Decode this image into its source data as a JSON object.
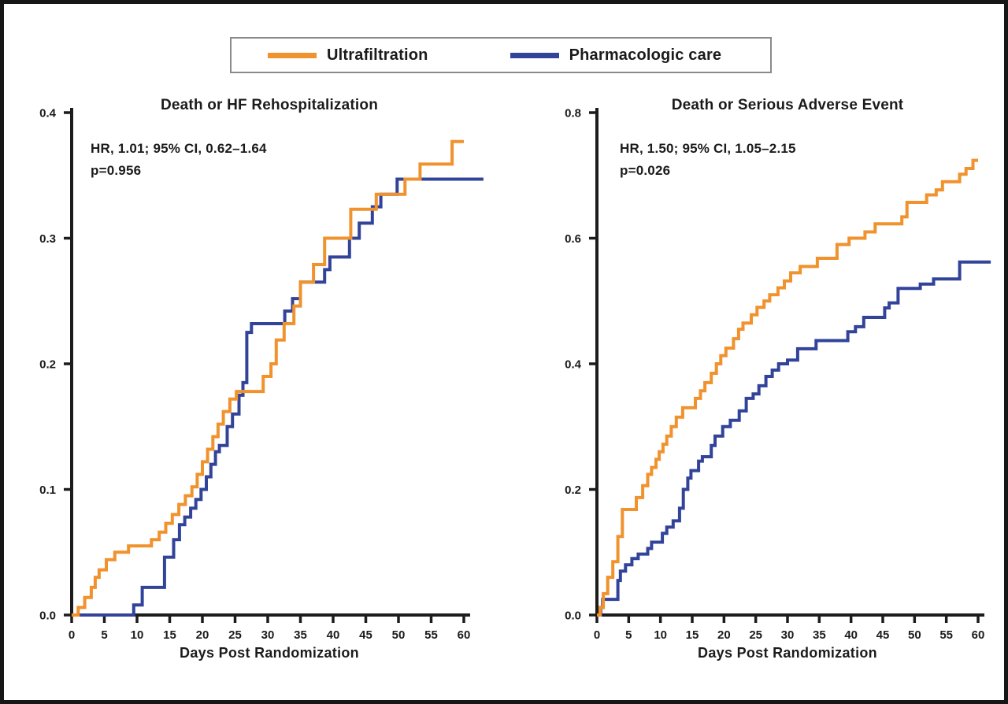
{
  "figure": {
    "legend": {
      "items": [
        {
          "label": "Ultrafiltration",
          "color": "#F0922D"
        },
        {
          "label": "Pharmacologic care",
          "color": "#32439A"
        }
      ]
    },
    "text_color": "#1b1b1b",
    "axis_color": "#1c1c1c"
  },
  "chart_data": [
    {
      "type": "line",
      "subtype": "step-cumulative-incidence",
      "title": "Death or HF Rehospitalization",
      "annotation": {
        "hr": "HR, 1.01; 95% CI, 0.62–1.64",
        "p": "p=0.956"
      },
      "xlabel": "Days Post Randomization",
      "xlim": [
        0,
        60
      ],
      "ylim": [
        0,
        0.4
      ],
      "x_ticks": [
        "0",
        "5",
        "10",
        "15",
        "20",
        "25",
        "30",
        "35",
        "40",
        "45",
        "50",
        "55",
        "60"
      ],
      "y_ticks": [
        "0.0",
        "0.1",
        "0.2",
        "0.3",
        "0.4"
      ],
      "legend_position": "top-outside",
      "grid": false,
      "series": [
        {
          "name": "Ultrafiltration",
          "color": "#F0922D",
          "steps": [
            [
              0,
              0
            ],
            [
              1,
              0.006
            ],
            [
              2,
              0.014
            ],
            [
              3,
              0.022
            ],
            [
              3.6,
              0.03
            ],
            [
              4.2,
              0.036
            ],
            [
              5.3,
              0.044
            ],
            [
              6.6,
              0.05
            ],
            [
              8.7,
              0.055
            ],
            [
              12.2,
              0.06
            ],
            [
              13.4,
              0.066
            ],
            [
              14.4,
              0.073
            ],
            [
              15.4,
              0.08
            ],
            [
              16.4,
              0.088
            ],
            [
              17.4,
              0.095
            ],
            [
              18.4,
              0.102
            ],
            [
              19.2,
              0.112
            ],
            [
              20,
              0.122
            ],
            [
              20.8,
              0.132
            ],
            [
              21.6,
              0.142
            ],
            [
              22.4,
              0.152
            ],
            [
              23.2,
              0.162
            ],
            [
              24.2,
              0.172
            ],
            [
              25.2,
              0.178
            ],
            [
              29.3,
              0.19
            ],
            [
              30.5,
              0.2
            ],
            [
              31.3,
              0.219
            ],
            [
              32.5,
              0.232
            ],
            [
              34,
              0.246
            ],
            [
              35,
              0.265
            ],
            [
              37,
              0.279
            ],
            [
              38.7,
              0.3
            ],
            [
              42.7,
              0.323
            ],
            [
              46.6,
              0.335
            ],
            [
              51,
              0.347
            ],
            [
              53.3,
              0.359
            ],
            [
              58.2,
              0.377
            ],
            [
              60,
              0.377
            ]
          ]
        },
        {
          "name": "Pharmacologic care",
          "color": "#32439A",
          "steps": [
            [
              0,
              0
            ],
            [
              9.5,
              0.008
            ],
            [
              10.8,
              0.022
            ],
            [
              14.2,
              0.046
            ],
            [
              15.6,
              0.06
            ],
            [
              16.5,
              0.072
            ],
            [
              17.3,
              0.078
            ],
            [
              18.2,
              0.085
            ],
            [
              19,
              0.092
            ],
            [
              19.8,
              0.1
            ],
            [
              20.6,
              0.11
            ],
            [
              21.3,
              0.12
            ],
            [
              22,
              0.13
            ],
            [
              22.6,
              0.135
            ],
            [
              23.8,
              0.15
            ],
            [
              24.6,
              0.16
            ],
            [
              25.6,
              0.175
            ],
            [
              26.2,
              0.185
            ],
            [
              26.8,
              0.225
            ],
            [
              27.5,
              0.232
            ],
            [
              32.6,
              0.242
            ],
            [
              33.8,
              0.252
            ],
            [
              35,
              0.265
            ],
            [
              38.7,
              0.275
            ],
            [
              39.5,
              0.285
            ],
            [
              42.5,
              0.3
            ],
            [
              44,
              0.312
            ],
            [
              46,
              0.325
            ],
            [
              47.3,
              0.335
            ],
            [
              49.8,
              0.347
            ],
            [
              63,
              0.347
            ]
          ]
        }
      ]
    },
    {
      "type": "line",
      "subtype": "step-cumulative-incidence",
      "title": "Death or Serious Adverse Event",
      "annotation": {
        "hr": "HR, 1.50; 95% CI, 1.05–2.15",
        "p": "p=0.026"
      },
      "xlabel": "Days Post Randomization",
      "xlim": [
        0,
        60
      ],
      "ylim": [
        0,
        0.8
      ],
      "x_ticks": [
        "0",
        "5",
        "10",
        "15",
        "20",
        "25",
        "30",
        "35",
        "40",
        "45",
        "50",
        "55",
        "60"
      ],
      "y_ticks": [
        "0.0",
        "0.2",
        "0.4",
        "0.6",
        "0.8"
      ],
      "legend_position": "top-outside",
      "grid": false,
      "series": [
        {
          "name": "Ultrafiltration",
          "color": "#F0922D",
          "steps": [
            [
              0,
              0
            ],
            [
              0.5,
              0.012
            ],
            [
              1,
              0.034
            ],
            [
              1.7,
              0.06
            ],
            [
              2.5,
              0.085
            ],
            [
              3.3,
              0.125
            ],
            [
              4,
              0.168
            ],
            [
              6.2,
              0.187
            ],
            [
              7.2,
              0.206
            ],
            [
              8,
              0.224
            ],
            [
              8.6,
              0.235
            ],
            [
              9.3,
              0.248
            ],
            [
              9.8,
              0.26
            ],
            [
              10.4,
              0.272
            ],
            [
              11,
              0.285
            ],
            [
              11.7,
              0.3
            ],
            [
              12.5,
              0.315
            ],
            [
              13.5,
              0.33
            ],
            [
              15.5,
              0.345
            ],
            [
              16.3,
              0.357
            ],
            [
              17,
              0.37
            ],
            [
              18,
              0.385
            ],
            [
              18.8,
              0.4
            ],
            [
              19.5,
              0.413
            ],
            [
              20.3,
              0.425
            ],
            [
              21.5,
              0.44
            ],
            [
              22.3,
              0.455
            ],
            [
              23,
              0.465
            ],
            [
              24.3,
              0.478
            ],
            [
              25.2,
              0.49
            ],
            [
              26.3,
              0.5
            ],
            [
              27.2,
              0.51
            ],
            [
              28.5,
              0.521
            ],
            [
              29.5,
              0.532
            ],
            [
              30.5,
              0.545
            ],
            [
              32,
              0.555
            ],
            [
              34.7,
              0.568
            ],
            [
              37.8,
              0.59
            ],
            [
              39.7,
              0.6
            ],
            [
              42.2,
              0.61
            ],
            [
              43.8,
              0.623
            ],
            [
              48,
              0.634
            ],
            [
              48.8,
              0.657
            ],
            [
              51.9,
              0.669
            ],
            [
              53.4,
              0.677
            ],
            [
              54.4,
              0.69
            ],
            [
              57.1,
              0.702
            ],
            [
              58.1,
              0.711
            ],
            [
              59.2,
              0.724
            ],
            [
              60,
              0.724
            ]
          ]
        },
        {
          "name": "Pharmacologic care",
          "color": "#32439A",
          "steps": [
            [
              0,
              0
            ],
            [
              0.6,
              0.012
            ],
            [
              0.9,
              0.025
            ],
            [
              3.3,
              0.055
            ],
            [
              3.7,
              0.07
            ],
            [
              4.5,
              0.08
            ],
            [
              5.5,
              0.09
            ],
            [
              6.5,
              0.097
            ],
            [
              8,
              0.106
            ],
            [
              8.6,
              0.116
            ],
            [
              10.3,
              0.13
            ],
            [
              11,
              0.14
            ],
            [
              12,
              0.15
            ],
            [
              13,
              0.17
            ],
            [
              13.6,
              0.2
            ],
            [
              14.3,
              0.218
            ],
            [
              14.8,
              0.23
            ],
            [
              16,
              0.245
            ],
            [
              16.6,
              0.252
            ],
            [
              18,
              0.27
            ],
            [
              18.6,
              0.285
            ],
            [
              19.8,
              0.3
            ],
            [
              21,
              0.31
            ],
            [
              22.4,
              0.325
            ],
            [
              23.5,
              0.345
            ],
            [
              24.6,
              0.352
            ],
            [
              25.5,
              0.365
            ],
            [
              26.6,
              0.38
            ],
            [
              27.6,
              0.39
            ],
            [
              28.6,
              0.4
            ],
            [
              30,
              0.406
            ],
            [
              31.6,
              0.424
            ],
            [
              34.5,
              0.437
            ],
            [
              39.5,
              0.451
            ],
            [
              40.7,
              0.459
            ],
            [
              42,
              0.474
            ],
            [
              45.3,
              0.489
            ],
            [
              46,
              0.497
            ],
            [
              47.4,
              0.52
            ],
            [
              50.9,
              0.527
            ],
            [
              53,
              0.535
            ],
            [
              57.1,
              0.562
            ],
            [
              62,
              0.562
            ]
          ]
        }
      ]
    }
  ]
}
